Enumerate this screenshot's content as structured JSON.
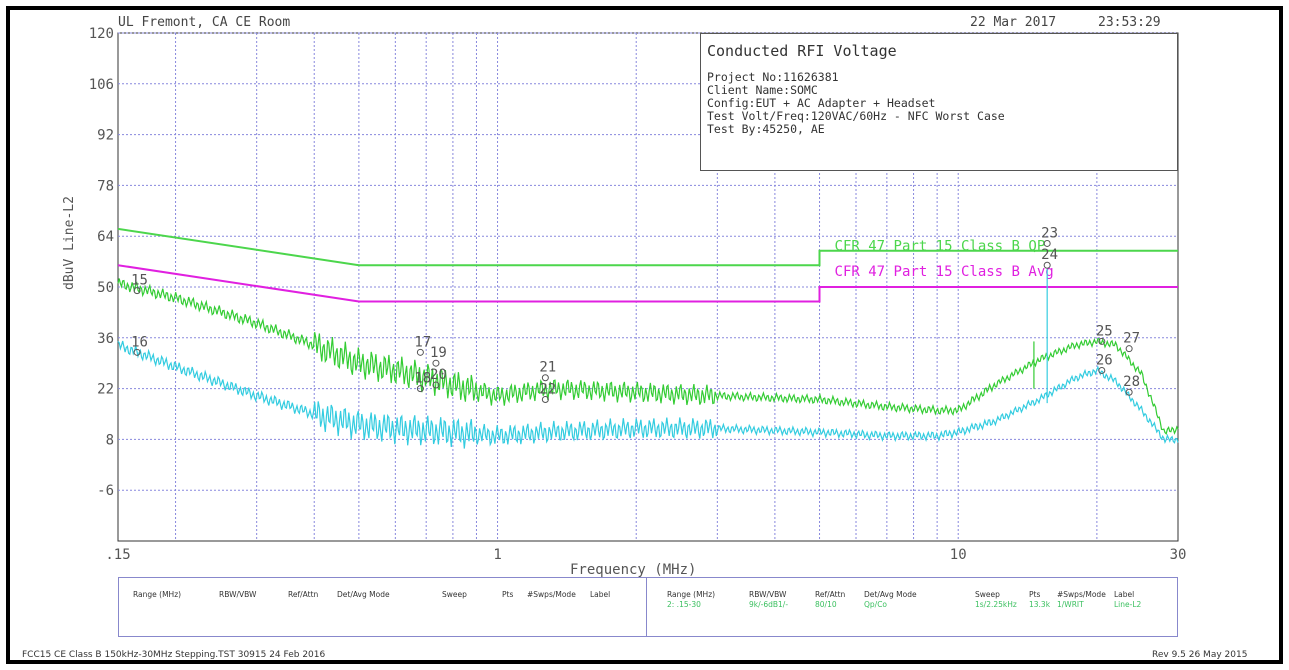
{
  "header": {
    "location": "UL Fremont, CA CE Room",
    "date": "22 Mar 2017",
    "time": "23:53:29"
  },
  "info": {
    "title": "Conducted RFI Voltage",
    "project": "Project No:11626381",
    "client": "Client Name:SOMC",
    "config": "Config:EUT + AC Adapter + Headset",
    "test_volt": "Test Volt/Freq:120VAC/60Hz - NFC Worst Case",
    "test_by": "Test By:45250, AE"
  },
  "footer": {
    "left": "FCC15 CE Class B 150kHz-30MHz Stepping.TST 30915 24 Feb 2016",
    "right": "Rev 9.5 26 May 2015"
  },
  "settings": {
    "headers": [
      "Range (MHz)",
      "RBW/VBW",
      "Ref/Attn",
      "Det/Avg Mode",
      "Sweep",
      "Pts",
      "#Swps/Mode",
      "Label"
    ],
    "values": [
      "2: .15-30",
      "9k/-6dB1/-",
      "80/10",
      "Qp/Co",
      "1s/2.25kHz",
      "13.3k",
      "1/WRIT",
      "Line-L2"
    ]
  },
  "colors": {
    "grid": "#8888dd",
    "qp_limit": "#4cd64c",
    "avg_limit": "#e020e0",
    "qp_trace": "#33cc33",
    "avg_trace": "#33cce0",
    "marker": "#555555"
  },
  "chart_data": {
    "type": "line",
    "xlabel": "Frequency (MHz)",
    "ylabel": "dBuV Line-L2",
    "xscale": "log",
    "xlim": [
      0.15,
      30
    ],
    "ylim": [
      -20,
      120
    ],
    "y_ticks": [
      120,
      106,
      92,
      78,
      64,
      50,
      36,
      22,
      8,
      -6
    ],
    "x_ticks": [
      {
        "v": 0.15,
        "label": ".15"
      },
      {
        "v": 1,
        "label": "1"
      },
      {
        "v": 10,
        "label": "10"
      },
      {
        "v": 30,
        "label": "30"
      }
    ],
    "limits": [
      {
        "name": "CFR 47 Part 15 Class B QP",
        "points": [
          [
            0.15,
            66
          ],
          [
            0.5,
            56
          ],
          [
            5,
            56
          ],
          [
            5,
            60
          ],
          [
            30,
            60
          ]
        ]
      },
      {
        "name": "CFR 47 Part 15 Class B Avg",
        "points": [
          [
            0.15,
            56
          ],
          [
            0.5,
            46
          ],
          [
            5,
            46
          ],
          [
            5,
            50
          ],
          [
            30,
            50
          ]
        ]
      }
    ],
    "series": [
      {
        "role": "qp",
        "points": [
          [
            0.15,
            51
          ],
          [
            0.2,
            47
          ],
          [
            0.3,
            40
          ],
          [
            0.4,
            34
          ],
          [
            0.5,
            29
          ],
          [
            0.6,
            27
          ],
          [
            0.7,
            25
          ],
          [
            0.8,
            23
          ],
          [
            1.0,
            20
          ],
          [
            1.3,
            22
          ],
          [
            2,
            21
          ],
          [
            3,
            20
          ],
          [
            5,
            19
          ],
          [
            7,
            17
          ],
          [
            9,
            16
          ],
          [
            10,
            16
          ],
          [
            12,
            23
          ],
          [
            15,
            30
          ],
          [
            18,
            34
          ],
          [
            20,
            35
          ],
          [
            22,
            34
          ],
          [
            25,
            26
          ],
          [
            28,
            10
          ],
          [
            30,
            11
          ]
        ]
      },
      {
        "role": "avg",
        "points": [
          [
            0.15,
            34
          ],
          [
            0.2,
            28
          ],
          [
            0.3,
            20
          ],
          [
            0.4,
            15
          ],
          [
            0.5,
            12
          ],
          [
            0.6,
            11
          ],
          [
            0.8,
            10
          ],
          [
            1.0,
            9
          ],
          [
            1.3,
            10
          ],
          [
            2,
            11
          ],
          [
            3,
            11
          ],
          [
            5,
            10
          ],
          [
            7,
            9
          ],
          [
            9,
            9
          ],
          [
            10,
            10
          ],
          [
            12,
            13
          ],
          [
            15,
            19
          ],
          [
            18,
            25
          ],
          [
            20,
            27
          ],
          [
            22,
            24
          ],
          [
            25,
            16
          ],
          [
            28,
            8
          ],
          [
            30,
            8
          ]
        ]
      }
    ],
    "markers": [
      {
        "label": "15",
        "x": 0.165,
        "y": 49
      },
      {
        "label": "16",
        "x": 0.165,
        "y": 32
      },
      {
        "label": "17",
        "x": 0.68,
        "y": 32
      },
      {
        "label": "18",
        "x": 0.68,
        "y": 22
      },
      {
        "label": "19",
        "x": 0.735,
        "y": 29
      },
      {
        "label": "20",
        "x": 0.735,
        "y": 23
      },
      {
        "label": "21",
        "x": 1.27,
        "y": 25
      },
      {
        "label": "22",
        "x": 1.27,
        "y": 19
      },
      {
        "label": "23",
        "x": 15.6,
        "y": 62
      },
      {
        "label": "24",
        "x": 15.6,
        "y": 56
      },
      {
        "label": "25",
        "x": 20.5,
        "y": 35
      },
      {
        "label": "26",
        "x": 20.5,
        "y": 27
      },
      {
        "label": "27",
        "x": 23.5,
        "y": 33
      },
      {
        "label": "28",
        "x": 23.5,
        "y": 21
      }
    ]
  }
}
